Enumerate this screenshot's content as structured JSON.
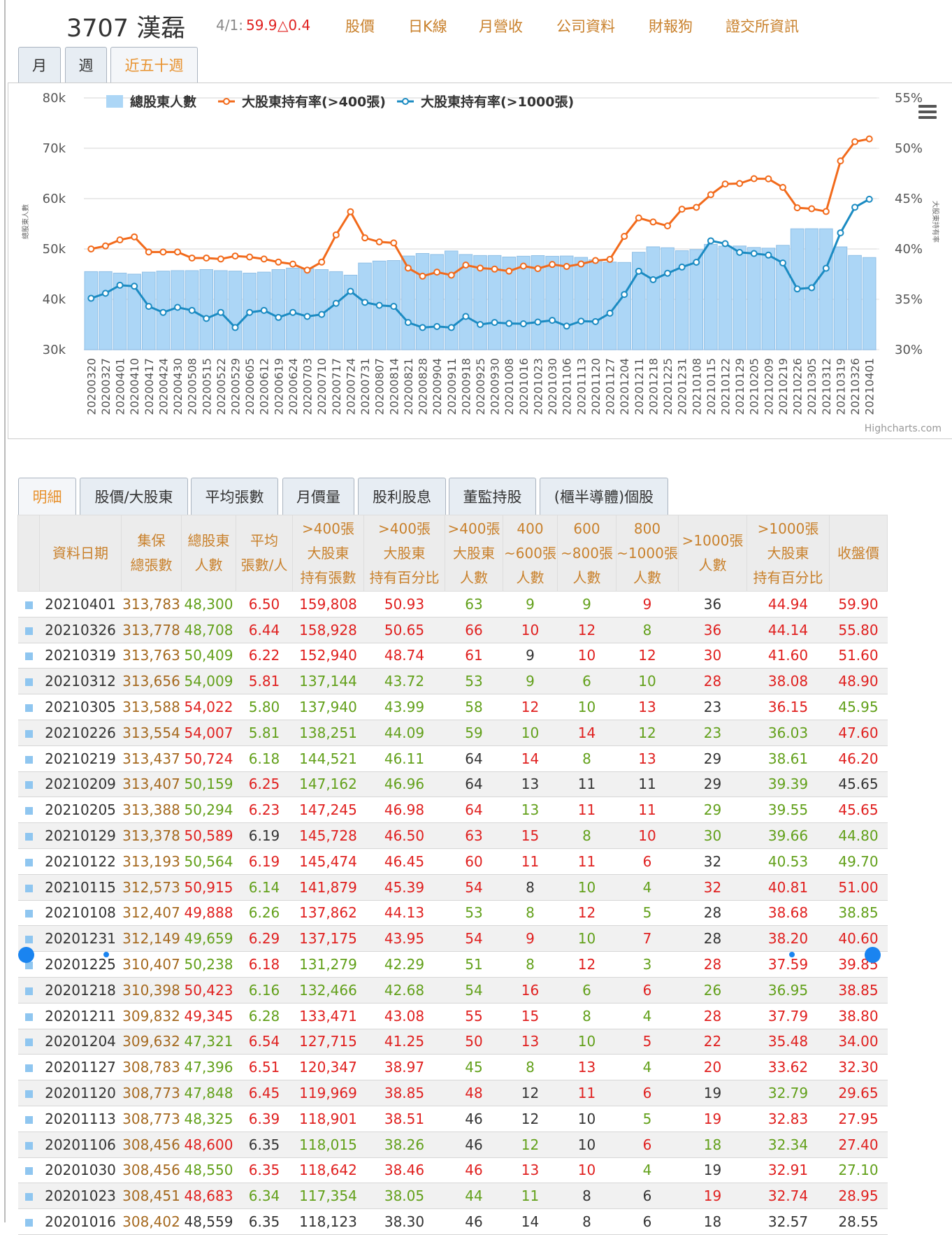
{
  "header": {
    "title": "3707 漢磊",
    "date": "4/1:",
    "price": "59.9",
    "change": "△0.4",
    "links": [
      "股價",
      "日K線",
      "月營收",
      "公司資料",
      "財報狗",
      "證交所資訊"
    ]
  },
  "period_tabs": {
    "items": [
      "月",
      "週",
      "近五十週"
    ],
    "active": 2
  },
  "chart_data": {
    "type": "combo",
    "categories": [
      "20200320",
      "20200327",
      "20200401",
      "20200410",
      "20200417",
      "20200424",
      "20200430",
      "20200508",
      "20200515",
      "20200522",
      "20200529",
      "20200605",
      "20200612",
      "20200619",
      "20200624",
      "20200703",
      "20200710",
      "20200717",
      "20200724",
      "20200731",
      "20200807",
      "20200814",
      "20200821",
      "20200828",
      "20200904",
      "20200911",
      "20200918",
      "20200925",
      "20200930",
      "20201008",
      "20201016",
      "20201023",
      "20201030",
      "20201106",
      "20201113",
      "20201120",
      "20201127",
      "20201204",
      "20201211",
      "20201218",
      "20201225",
      "20201231",
      "20210108",
      "20210115",
      "20210122",
      "20210129",
      "20210205",
      "20210209",
      "20210219",
      "20210226",
      "20210305",
      "20210312",
      "20210319",
      "20210326",
      "20210401"
    ],
    "series": [
      {
        "name": "總股東人數",
        "type": "column",
        "color": "#acd6f6",
        "values": [
          45500,
          45500,
          45200,
          45000,
          45400,
          45600,
          45700,
          45700,
          45900,
          45700,
          45600,
          45200,
          45400,
          45900,
          46200,
          46100,
          45900,
          45500,
          44800,
          47200,
          47600,
          47700,
          48600,
          49100,
          48900,
          49600,
          48900,
          48700,
          48700,
          48400,
          48559,
          48683,
          48550,
          48600,
          48325,
          47848,
          47396,
          47321,
          49345,
          50423,
          50238,
          49659,
          49888,
          50915,
          50564,
          50589,
          50294,
          50159,
          50724,
          54007,
          54022,
          54009,
          50409,
          48708,
          48300
        ]
      },
      {
        "name": "大股東持有率(>400張)",
        "type": "line",
        "axis": "y2",
        "color": "#f26a1b",
        "values": [
          40.0,
          40.3,
          40.9,
          41.2,
          39.7,
          39.7,
          39.7,
          39.1,
          39.1,
          39.0,
          39.3,
          39.2,
          39.0,
          38.7,
          38.5,
          37.9,
          38.7,
          41.4,
          43.7,
          41.1,
          40.7,
          40.6,
          38.1,
          37.3,
          37.7,
          37.4,
          38.4,
          38.1,
          38.0,
          37.8,
          38.3,
          38.05,
          38.46,
          38.26,
          38.51,
          38.85,
          38.97,
          41.25,
          43.08,
          42.68,
          42.29,
          43.95,
          44.13,
          45.39,
          46.45,
          46.5,
          46.98,
          46.96,
          46.11,
          44.09,
          43.99,
          43.72,
          48.74,
          50.65,
          50.93
        ]
      },
      {
        "name": "大股東持有率(>1000張)",
        "type": "line",
        "axis": "y2",
        "color": "#1b8bc2",
        "values": [
          35.1,
          35.6,
          36.4,
          36.3,
          34.3,
          33.7,
          34.2,
          33.9,
          33.1,
          33.7,
          32.2,
          33.7,
          33.9,
          33.2,
          33.7,
          33.3,
          33.5,
          34.6,
          35.8,
          34.7,
          34.4,
          34.3,
          32.7,
          32.2,
          32.3,
          32.2,
          33.3,
          32.5,
          32.7,
          32.6,
          32.57,
          32.74,
          32.91,
          32.34,
          32.83,
          32.79,
          33.62,
          35.48,
          37.79,
          36.95,
          37.59,
          38.2,
          38.68,
          40.81,
          40.53,
          39.66,
          39.55,
          39.39,
          38.61,
          36.03,
          36.15,
          38.08,
          41.6,
          44.14,
          44.94
        ]
      }
    ],
    "ylabel": "總股東人數",
    "y2label": "大股東持有率",
    "ylim": [
      30000,
      80000
    ],
    "yticks": [
      {
        "value": 30000,
        "label": "30k"
      },
      {
        "value": 40000,
        "label": "40k"
      },
      {
        "value": 50000,
        "label": "50k"
      },
      {
        "value": 60000,
        "label": "60k"
      },
      {
        "value": 70000,
        "label": "70k"
      },
      {
        "value": 80000,
        "label": "80k"
      }
    ],
    "y2lim": [
      30,
      55
    ],
    "y2ticks": [
      {
        "value": 30,
        "label": "30%"
      },
      {
        "value": 35,
        "label": "35%"
      },
      {
        "value": 40,
        "label": "40%"
      },
      {
        "value": 45,
        "label": "45%"
      },
      {
        "value": 50,
        "label": "50%"
      },
      {
        "value": 55,
        "label": "55%"
      }
    ],
    "grid": true,
    "legend": "top-left",
    "credits": "Highcharts.com"
  },
  "detail_tabs": {
    "items": [
      "明細",
      "股價/大股東",
      "平均張數",
      "月價量",
      "股利股息",
      "董監持股",
      "(櫃半導體)個股"
    ],
    "active": 0
  },
  "table": {
    "header": [
      [
        "資料日期"
      ],
      [
        "集保",
        "總張數"
      ],
      [
        "總股東",
        "人數"
      ],
      [
        "平均",
        "張數/人"
      ],
      [
        ">400張",
        "大股東",
        "持有張數"
      ],
      [
        ">400張",
        "大股東",
        "持有百分比"
      ],
      [
        ">400張",
        "大股東",
        "人數"
      ],
      [
        "400",
        "~600張",
        "人數"
      ],
      [
        "600",
        "~800張",
        "人數"
      ],
      [
        "800",
        "~1000張",
        "人數"
      ],
      [
        ">1000張",
        "人數"
      ],
      [
        ">1000張",
        "大股東",
        "持有百分比"
      ],
      [
        "收盤價"
      ]
    ],
    "rows": [
      [
        "20210401",
        "313,783",
        "48,300",
        "6.50",
        "159,808",
        "50.93",
        "63",
        "9",
        "9",
        "9",
        "36",
        "44.94",
        "59.90"
      ],
      [
        "20210326",
        "313,778",
        "48,708",
        "6.44",
        "158,928",
        "50.65",
        "66",
        "10",
        "12",
        "8",
        "36",
        "44.14",
        "55.80"
      ],
      [
        "20210319",
        "313,763",
        "50,409",
        "6.22",
        "152,940",
        "48.74",
        "61",
        "9",
        "10",
        "12",
        "30",
        "41.60",
        "51.60"
      ],
      [
        "20210312",
        "313,656",
        "54,009",
        "5.81",
        "137,144",
        "43.72",
        "53",
        "9",
        "6",
        "10",
        "28",
        "38.08",
        "48.90"
      ],
      [
        "20210305",
        "313,588",
        "54,022",
        "5.80",
        "137,940",
        "43.99",
        "58",
        "12",
        "10",
        "13",
        "23",
        "36.15",
        "45.95"
      ],
      [
        "20210226",
        "313,554",
        "54,007",
        "5.81",
        "138,251",
        "44.09",
        "59",
        "10",
        "14",
        "12",
        "23",
        "36.03",
        "47.60"
      ],
      [
        "20210219",
        "313,437",
        "50,724",
        "6.18",
        "144,521",
        "46.11",
        "64",
        "14",
        "8",
        "13",
        "29",
        "38.61",
        "46.20"
      ],
      [
        "20210209",
        "313,407",
        "50,159",
        "6.25",
        "147,162",
        "46.96",
        "64",
        "13",
        "11",
        "11",
        "29",
        "39.39",
        "45.65"
      ],
      [
        "20210205",
        "313,388",
        "50,294",
        "6.23",
        "147,245",
        "46.98",
        "64",
        "13",
        "11",
        "11",
        "29",
        "39.55",
        "45.65"
      ],
      [
        "20210129",
        "313,378",
        "50,589",
        "6.19",
        "145,728",
        "46.50",
        "63",
        "15",
        "8",
        "10",
        "30",
        "39.66",
        "44.80"
      ],
      [
        "20210122",
        "313,193",
        "50,564",
        "6.19",
        "145,474",
        "46.45",
        "60",
        "11",
        "11",
        "6",
        "32",
        "40.53",
        "49.70"
      ],
      [
        "20210115",
        "312,573",
        "50,915",
        "6.14",
        "141,879",
        "45.39",
        "54",
        "8",
        "10",
        "4",
        "32",
        "40.81",
        "51.00"
      ],
      [
        "20210108",
        "312,407",
        "49,888",
        "6.26",
        "137,862",
        "44.13",
        "53",
        "8",
        "12",
        "5",
        "28",
        "38.68",
        "38.85"
      ],
      [
        "20201231",
        "312,149",
        "49,659",
        "6.29",
        "137,175",
        "43.95",
        "54",
        "9",
        "10",
        "7",
        "28",
        "38.20",
        "40.60"
      ],
      [
        "20201225",
        "310,407",
        "50,238",
        "6.18",
        "131,279",
        "42.29",
        "51",
        "8",
        "12",
        "3",
        "28",
        "37.59",
        "39.85"
      ],
      [
        "20201218",
        "310,398",
        "50,423",
        "6.16",
        "132,466",
        "42.68",
        "54",
        "16",
        "6",
        "6",
        "26",
        "36.95",
        "38.85"
      ],
      [
        "20201211",
        "309,832",
        "49,345",
        "6.28",
        "133,471",
        "43.08",
        "55",
        "15",
        "8",
        "4",
        "28",
        "37.79",
        "38.80"
      ],
      [
        "20201204",
        "309,632",
        "47,321",
        "6.54",
        "127,715",
        "41.25",
        "50",
        "13",
        "10",
        "5",
        "22",
        "35.48",
        "34.00"
      ],
      [
        "20201127",
        "308,783",
        "47,396",
        "6.51",
        "120,347",
        "38.97",
        "45",
        "8",
        "13",
        "4",
        "20",
        "33.62",
        "32.30"
      ],
      [
        "20201120",
        "308,773",
        "47,848",
        "6.45",
        "119,969",
        "38.85",
        "48",
        "12",
        "11",
        "6",
        "19",
        "32.79",
        "29.65"
      ],
      [
        "20201113",
        "308,773",
        "48,325",
        "6.39",
        "118,901",
        "38.51",
        "46",
        "12",
        "10",
        "5",
        "19",
        "32.83",
        "27.95"
      ],
      [
        "20201106",
        "308,456",
        "48,600",
        "6.35",
        "118,015",
        "38.26",
        "46",
        "12",
        "10",
        "6",
        "18",
        "32.34",
        "27.40"
      ],
      [
        "20201030",
        "308,456",
        "48,550",
        "6.35",
        "118,642",
        "38.46",
        "46",
        "13",
        "10",
        "4",
        "19",
        "32.91",
        "27.10"
      ],
      [
        "20201023",
        "308,451",
        "48,683",
        "6.34",
        "117,354",
        "38.05",
        "44",
        "11",
        "8",
        "6",
        "19",
        "32.74",
        "28.95"
      ],
      [
        "20201016",
        "308,402",
        "48,559",
        "6.35",
        "118,123",
        "38.30",
        "46",
        "14",
        "8",
        "6",
        "18",
        "32.57",
        "28.55"
      ]
    ]
  }
}
